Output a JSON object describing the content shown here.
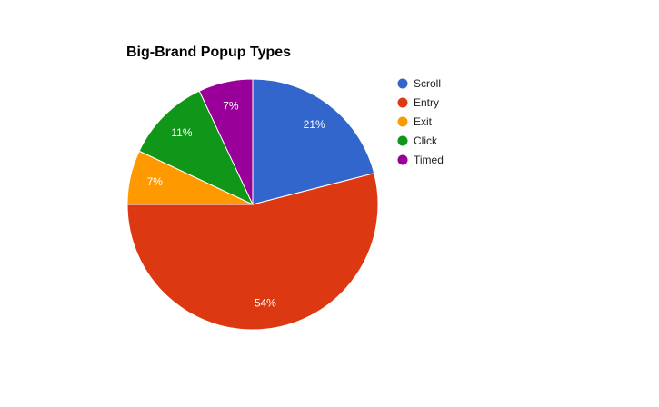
{
  "chart_data": {
    "type": "pie",
    "title": "Big-Brand Popup Types",
    "categories": [
      "Scroll",
      "Entry",
      "Exit",
      "Click",
      "Timed"
    ],
    "values": [
      21,
      54,
      7,
      11,
      7
    ],
    "value_labels": [
      "21%",
      "54%",
      "7%",
      "11%",
      "7%"
    ],
    "colors": [
      "#3366cc",
      "#dc3912",
      "#ff9900",
      "#109618",
      "#990099"
    ],
    "legend": "right"
  }
}
